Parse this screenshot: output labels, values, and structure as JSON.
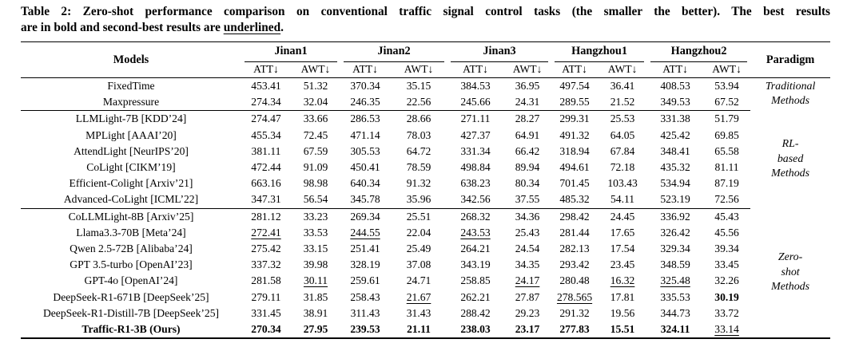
{
  "caption": {
    "part1": "Table 2: Zero-shot performance comparison on conventional traffic signal control tasks (the smaller the better). The best results",
    "line2_prefix": "are in bold and second-best results are ",
    "underlined_word": "underlined",
    "part3": "."
  },
  "table": {
    "header": {
      "models": "Models",
      "paradigm": "Paradigm",
      "cities": [
        "Jinan1",
        "Jinan2",
        "Jinan3",
        "Hangzhou1",
        "Hangzhou2"
      ],
      "att": "ATT↓",
      "awt": "AWT↓"
    },
    "groups": [
      {
        "paradigm_lines": [
          "Traditional",
          "Methods"
        ],
        "rows": [
          {
            "model": "FixedTime",
            "values": [
              "453.41",
              "51.32",
              "370.34",
              "35.15",
              "384.53",
              "36.95",
              "497.54",
              "36.41",
              "408.53",
              "53.94"
            ],
            "bold": [],
            "underline": []
          },
          {
            "model": "Maxpressure",
            "values": [
              "274.34",
              "32.04",
              "246.35",
              "22.56",
              "245.66",
              "24.31",
              "289.55",
              "21.52",
              "349.53",
              "67.52"
            ],
            "bold": [],
            "underline": []
          }
        ]
      },
      {
        "paradigm_lines": [
          "RL-",
          "based",
          "Methods"
        ],
        "rows": [
          {
            "model": "LLMLight-7B [KDD’24]",
            "values": [
              "274.47",
              "33.66",
              "286.53",
              "28.66",
              "271.11",
              "28.27",
              "299.31",
              "25.53",
              "331.38",
              "51.79"
            ],
            "bold": [],
            "underline": []
          },
          {
            "model": "MPLight [AAAI’20]",
            "values": [
              "455.34",
              "72.45",
              "471.14",
              "78.03",
              "427.37",
              "64.91",
              "491.32",
              "64.05",
              "425.42",
              "69.85"
            ],
            "bold": [],
            "underline": []
          },
          {
            "model": "AttendLight [NeurIPS’20]",
            "values": [
              "381.11",
              "67.59",
              "305.53",
              "64.72",
              "331.34",
              "66.42",
              "318.94",
              "67.84",
              "348.41",
              "65.58"
            ],
            "bold": [],
            "underline": []
          },
          {
            "model": "CoLight [CIKM’19]",
            "values": [
              "472.44",
              "91.09",
              "450.41",
              "78.59",
              "498.84",
              "89.94",
              "494.61",
              "72.18",
              "435.32",
              "81.11"
            ],
            "bold": [],
            "underline": []
          },
          {
            "model": "Efficient-Colight [Arxiv’21]",
            "values": [
              "663.16",
              "98.98",
              "640.34",
              "91.32",
              "638.23",
              "80.34",
              "701.45",
              "103.43",
              "534.94",
              "87.19"
            ],
            "bold": [],
            "underline": []
          },
          {
            "model": "Advanced-CoLight [ICML’22]",
            "values": [
              "347.31",
              "56.54",
              "345.78",
              "35.96",
              "342.56",
              "37.55",
              "485.32",
              "54.11",
              "523.19",
              "72.56"
            ],
            "bold": [],
            "underline": []
          }
        ]
      },
      {
        "paradigm_lines": [
          "Zero-",
          "shot",
          "Methods"
        ],
        "rows": [
          {
            "model": "CoLLMLight-8B [Arxiv’25]",
            "values": [
              "281.12",
              "33.23",
              "269.34",
              "25.51",
              "268.32",
              "34.36",
              "298.42",
              "24.45",
              "336.92",
              "45.43"
            ],
            "bold": [],
            "underline": []
          },
          {
            "model": "Llama3.3-70B [Meta’24]",
            "values": [
              "272.41",
              "33.53",
              "244.55",
              "22.04",
              "243.53",
              "25.43",
              "281.44",
              "17.65",
              "326.42",
              "45.56"
            ],
            "bold": [],
            "underline": [
              0,
              2,
              4
            ]
          },
          {
            "model": "Qwen 2.5-72B [Alibaba’24]",
            "values": [
              "275.42",
              "33.15",
              "251.41",
              "25.49",
              "264.21",
              "24.54",
              "282.13",
              "17.54",
              "329.34",
              "39.34"
            ],
            "bold": [],
            "underline": []
          },
          {
            "model": "GPT 3.5-turbo [OpenAI’23]",
            "values": [
              "337.32",
              "39.98",
              "328.19",
              "37.08",
              "343.19",
              "34.35",
              "293.42",
              "23.45",
              "348.59",
              "33.45"
            ],
            "bold": [],
            "underline": []
          },
          {
            "model": "GPT-4o [OpenAI’24]",
            "values": [
              "281.58",
              "30.11",
              "259.61",
              "24.71",
              "258.85",
              "24.17",
              "280.48",
              "16.32",
              "325.48",
              "32.26"
            ],
            "bold": [],
            "underline": [
              1,
              5,
              7,
              8
            ]
          },
          {
            "model": "DeepSeek-R1-671B [DeepSeek’25]",
            "values": [
              "279.11",
              "31.85",
              "258.43",
              "21.67",
              "262.21",
              "27.87",
              "278.565",
              "17.81",
              "335.53",
              "30.19"
            ],
            "bold": [
              9
            ],
            "underline": [
              3,
              6
            ]
          },
          {
            "model": "DeepSeek-R1-Distill-7B [DeepSeek’25]",
            "values": [
              "331.45",
              "38.91",
              "311.43",
              "31.43",
              "288.42",
              "29.23",
              "291.32",
              "19.56",
              "344.73",
              "33.72"
            ],
            "bold": [],
            "underline": []
          },
          {
            "model": "Traffic-R1-3B (Ours)",
            "model_bold": true,
            "values": [
              "270.34",
              "27.95",
              "239.53",
              "21.11",
              "238.03",
              "23.17",
              "277.83",
              "15.51",
              "324.11",
              "33.14"
            ],
            "bold": [
              0,
              1,
              2,
              3,
              4,
              5,
              6,
              7,
              8
            ],
            "underline": [
              9
            ]
          }
        ]
      }
    ]
  }
}
